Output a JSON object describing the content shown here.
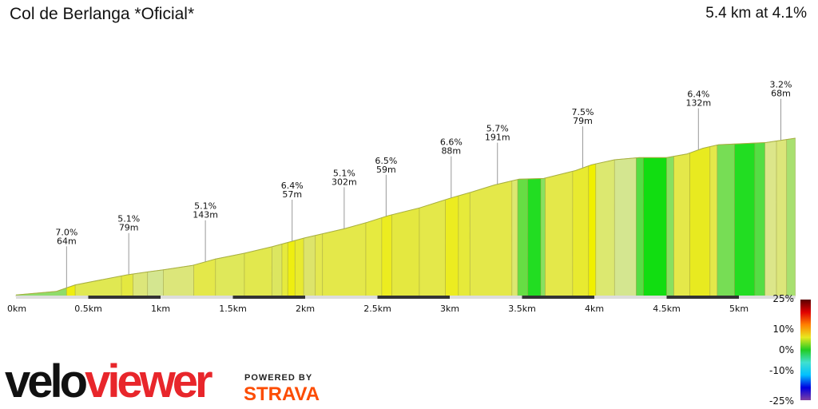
{
  "title": "Col de Berlanga *Oficial*",
  "summary": "5.4 km at 4.1%",
  "chart_data": {
    "type": "area",
    "xlabel": "",
    "ylabel": "",
    "xlim": [
      0,
      5.39
    ],
    "x_ticks": [
      {
        "value": 0,
        "label": "0km"
      },
      {
        "value": 0.5,
        "label": "0.5km"
      },
      {
        "value": 1,
        "label": "1km"
      },
      {
        "value": 1.5,
        "label": "1.5km"
      },
      {
        "value": 2,
        "label": "2km"
      },
      {
        "value": 2.5,
        "label": "2.5km"
      },
      {
        "value": 3,
        "label": "3km"
      },
      {
        "value": 3.5,
        "label": "3.5km"
      },
      {
        "value": 4,
        "label": "4km"
      },
      {
        "value": 4.5,
        "label": "4.5km"
      },
      {
        "value": 5,
        "label": "5km"
      }
    ],
    "profile": [
      [
        0,
        2
      ],
      [
        0.28,
        7
      ],
      [
        0.41,
        16
      ],
      [
        0.77,
        30
      ],
      [
        0.91,
        34
      ],
      [
        1.02,
        37
      ],
      [
        1.22,
        43
      ],
      [
        1.38,
        52
      ],
      [
        1.58,
        60
      ],
      [
        1.77,
        69
      ],
      [
        1.88,
        75
      ],
      [
        1.99,
        81
      ],
      [
        2.27,
        94
      ],
      [
        2.43,
        103
      ],
      [
        2.57,
        112
      ],
      [
        2.79,
        123
      ],
      [
        3.01,
        137
      ],
      [
        3.15,
        145
      ],
      [
        3.31,
        155
      ],
      [
        3.48,
        163
      ],
      [
        3.65,
        164
      ],
      [
        3.87,
        175
      ],
      [
        3.98,
        183
      ],
      [
        4.14,
        190
      ],
      [
        4.31,
        193
      ],
      [
        4.5,
        193
      ],
      [
        4.64,
        198
      ],
      [
        4.75,
        206
      ],
      [
        4.86,
        211
      ],
      [
        4.97,
        212
      ],
      [
        5.19,
        214
      ],
      [
        5.39,
        220
      ]
    ],
    "gradient_bands": [
      [
        0,
        0.35,
        "#8fdc6a"
      ],
      [
        0.35,
        0.41,
        "#eeee10"
      ],
      [
        0.41,
        0.73,
        "#e0e852"
      ],
      [
        0.73,
        0.81,
        "#e4e840"
      ],
      [
        0.81,
        0.91,
        "#dce67a"
      ],
      [
        0.91,
        1.02,
        "#d4e690"
      ],
      [
        1.02,
        1.23,
        "#dce67a"
      ],
      [
        1.23,
        1.38,
        "#e4e84a"
      ],
      [
        1.38,
        1.58,
        "#dfe85a"
      ],
      [
        1.58,
        1.77,
        "#e2e84e"
      ],
      [
        1.77,
        1.84,
        "#dce660"
      ],
      [
        1.84,
        1.88,
        "#e6ea3c"
      ],
      [
        1.88,
        1.93,
        "#eeee10"
      ],
      [
        1.93,
        1.99,
        "#e8ea30"
      ],
      [
        1.99,
        2.07,
        "#dde46a"
      ],
      [
        2.07,
        2.12,
        "#e4e850"
      ],
      [
        2.12,
        2.42,
        "#e4e84a"
      ],
      [
        2.42,
        2.53,
        "#e6ea40"
      ],
      [
        2.53,
        2.6,
        "#ecec20"
      ],
      [
        2.6,
        2.79,
        "#e4e840"
      ],
      [
        2.79,
        2.97,
        "#e4e84a"
      ],
      [
        2.97,
        3.06,
        "#ecec20"
      ],
      [
        3.06,
        3.14,
        "#e6ea3a"
      ],
      [
        3.14,
        3.43,
        "#e4e84a"
      ],
      [
        3.43,
        3.47,
        "#dce870"
      ],
      [
        3.47,
        3.54,
        "#66dd44"
      ],
      [
        3.54,
        3.63,
        "#22dd22"
      ],
      [
        3.63,
        3.66,
        "#88e060"
      ],
      [
        3.66,
        3.85,
        "#e4e84a"
      ],
      [
        3.85,
        3.96,
        "#e8ea30"
      ],
      [
        3.96,
        4.01,
        "#f0f000"
      ],
      [
        4.01,
        4.14,
        "#dce870"
      ],
      [
        4.14,
        4.29,
        "#d4e690"
      ],
      [
        4.29,
        4.34,
        "#55dd44"
      ],
      [
        4.34,
        4.5,
        "#11dd11"
      ],
      [
        4.5,
        4.55,
        "#88e060"
      ],
      [
        4.55,
        4.66,
        "#e4e84a"
      ],
      [
        4.66,
        4.8,
        "#e8ea20"
      ],
      [
        4.8,
        4.85,
        "#e4e84a"
      ],
      [
        4.85,
        4.97,
        "#77dd55"
      ],
      [
        4.97,
        5.11,
        "#22dd22"
      ],
      [
        5.11,
        5.18,
        "#55dd44"
      ],
      [
        5.18,
        5.26,
        "#dce68a"
      ],
      [
        5.26,
        5.33,
        "#dce67a"
      ],
      [
        5.33,
        5.39,
        "#a8e070"
      ]
    ],
    "annotations": [
      {
        "km": 0.35,
        "grade": "7.0%",
        "length": "64m"
      },
      {
        "km": 0.78,
        "grade": "5.1%",
        "length": "79m"
      },
      {
        "km": 1.31,
        "grade": "5.1%",
        "length": "143m"
      },
      {
        "km": 1.91,
        "grade": "6.4%",
        "length": "57m"
      },
      {
        "km": 2.27,
        "grade": "5.1%",
        "length": "302m"
      },
      {
        "km": 2.56,
        "grade": "6.5%",
        "length": "59m"
      },
      {
        "km": 3.01,
        "grade": "6.6%",
        "length": "88m"
      },
      {
        "km": 3.33,
        "grade": "5.7%",
        "length": "191m"
      },
      {
        "km": 3.92,
        "grade": "7.5%",
        "length": "79m"
      },
      {
        "km": 4.72,
        "grade": "6.4%",
        "length": "132m"
      },
      {
        "km": 5.29,
        "grade": "3.2%",
        "length": "68m"
      }
    ],
    "color_legend": {
      "labels": [
        "25%",
        "10%",
        "0%",
        "-10%",
        "-25%"
      ],
      "stops": [
        "#5a0000",
        "#e00000",
        "#ff8000",
        "#e8e820",
        "#22cc22",
        "#40e0d0",
        "#00c0ff",
        "#0000e0",
        "#8040a0"
      ]
    }
  },
  "branding": {
    "logo_velo": "velo",
    "logo_viewer": "viewer",
    "powered_by": "POWERED BY",
    "strava": "STRAVA"
  }
}
